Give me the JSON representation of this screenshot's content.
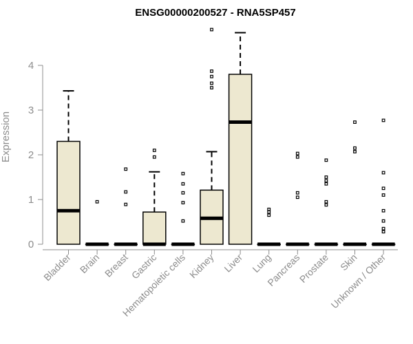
{
  "chart_data": {
    "type": "box",
    "title": "ENSG00000200527 - RNA5SP457",
    "ylabel": "Expression",
    "xlabel": "",
    "ylim": [
      0,
      4.9
    ],
    "yticks": [
      0,
      1,
      2,
      3,
      4
    ],
    "grid": false,
    "colors": {
      "box_fill": "#ede8d0",
      "stroke": "#000000",
      "axis_text": "#8c8c8c"
    },
    "categories": [
      "Bladder",
      "Brain",
      "Breast",
      "Gastric",
      "Hematopoietic cells",
      "Kidney",
      "Liver",
      "Lung",
      "Pancreas",
      "Prostate",
      "Skin",
      "Unknown / Other"
    ],
    "boxes": [
      {
        "category": "Bladder",
        "min": 0,
        "q1": 0,
        "median": 0.75,
        "q3": 2.3,
        "max": 3.43,
        "outliers": []
      },
      {
        "category": "Brain",
        "min": 0,
        "q1": 0,
        "median": 0,
        "q3": 0,
        "max": 0,
        "outliers": [
          0.95
        ]
      },
      {
        "category": "Breast",
        "min": 0,
        "q1": 0,
        "median": 0,
        "q3": 0,
        "max": 0,
        "outliers": [
          0.89,
          1.17,
          1.68
        ]
      },
      {
        "category": "Gastric",
        "min": 0,
        "q1": 0,
        "median": 0,
        "q3": 0.72,
        "max": 1.62,
        "outliers": [
          1.95,
          2.1
        ]
      },
      {
        "category": "Hematopoietic cells",
        "min": 0,
        "q1": 0,
        "median": 0,
        "q3": 0,
        "max": 0,
        "outliers": [
          0.52,
          0.93,
          1.15,
          1.35,
          1.58
        ]
      },
      {
        "category": "Kidney",
        "min": 0,
        "q1": 0,
        "median": 0.58,
        "q3": 1.21,
        "max": 2.07,
        "outliers": [
          3.5,
          3.6,
          3.75,
          3.87,
          4.8
        ]
      },
      {
        "category": "Liver",
        "min": 0,
        "q1": 0,
        "median": 2.73,
        "q3": 3.8,
        "max": 4.73,
        "outliers": []
      },
      {
        "category": "Lung",
        "min": 0,
        "q1": 0,
        "median": 0,
        "q3": 0,
        "max": 0,
        "outliers": [
          0.65,
          0.72,
          0.78
        ]
      },
      {
        "category": "Pancreas",
        "min": 0,
        "q1": 0,
        "median": 0,
        "q3": 0,
        "max": 0,
        "outliers": [
          1.05,
          1.15,
          1.95,
          2.03
        ]
      },
      {
        "category": "Prostate",
        "min": 0,
        "q1": 0,
        "median": 0,
        "q3": 0,
        "max": 0,
        "outliers": [
          0.88,
          0.95,
          1.35,
          1.42,
          1.5,
          1.88
        ]
      },
      {
        "category": "Skin",
        "min": 0,
        "q1": 0,
        "median": 0,
        "q3": 0,
        "max": 0,
        "outliers": [
          2.07,
          2.15,
          2.73
        ]
      },
      {
        "category": "Unknown / Other",
        "min": 0,
        "q1": 0,
        "median": 0,
        "q3": 0,
        "max": 0,
        "outliers": [
          0.28,
          0.35,
          0.52,
          0.75,
          1.1,
          1.25,
          1.6,
          2.77
        ]
      }
    ]
  }
}
